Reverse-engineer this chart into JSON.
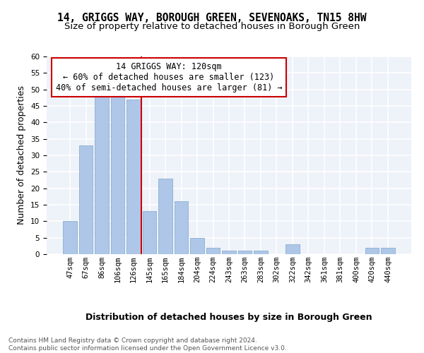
{
  "title_line1": "14, GRIGGS WAY, BOROUGH GREEN, SEVENOAKS, TN15 8HW",
  "title_line2": "Size of property relative to detached houses in Borough Green",
  "xlabel": "Distribution of detached houses by size in Borough Green",
  "ylabel": "Number of detached properties",
  "categories": [
    "47sqm",
    "67sqm",
    "86sqm",
    "106sqm",
    "126sqm",
    "145sqm",
    "165sqm",
    "184sqm",
    "204sqm",
    "224sqm",
    "243sqm",
    "263sqm",
    "283sqm",
    "302sqm",
    "322sqm",
    "342sqm",
    "361sqm",
    "381sqm",
    "400sqm",
    "420sqm",
    "440sqm"
  ],
  "values": [
    10,
    33,
    48,
    48,
    47,
    13,
    23,
    16,
    5,
    2,
    1,
    1,
    1,
    0,
    3,
    0,
    0,
    0,
    0,
    2,
    2
  ],
  "bar_color": "#aec6e8",
  "bar_edge_color": "#8ab0d0",
  "vline_color": "#cc0000",
  "vline_x_index": 4,
  "annotation_text": "14 GRIGGS WAY: 120sqm\n← 60% of detached houses are smaller (123)\n40% of semi-detached houses are larger (81) →",
  "annotation_box_color": "#ffffff",
  "annotation_box_edge_color": "#cc0000",
  "ylim": [
    0,
    60
  ],
  "yticks": [
    0,
    5,
    10,
    15,
    20,
    25,
    30,
    35,
    40,
    45,
    50,
    55,
    60
  ],
  "bg_color": "#eef2f9",
  "grid_color": "#ffffff",
  "footer_text": "Contains HM Land Registry data © Crown copyright and database right 2024.\nContains public sector information licensed under the Open Government Licence v3.0.",
  "title_fontsize": 10.5,
  "subtitle_fontsize": 9.5,
  "label_fontsize": 9,
  "tick_fontsize": 7.5,
  "annotation_fontsize": 8.5,
  "footer_fontsize": 6.5
}
